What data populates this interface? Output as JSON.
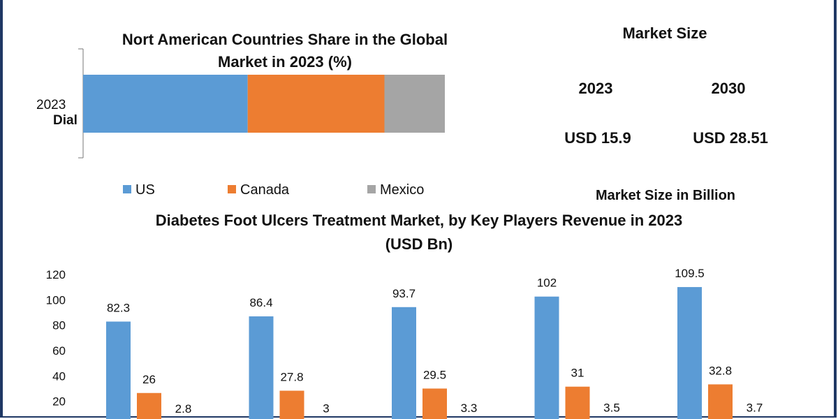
{
  "top_chart": {
    "title_line1": "Nort American Countries Share in the Global",
    "title_line2": "Market in 2023 (%)",
    "y_label_year": "2023",
    "y_label_cut": "Dial",
    "legend": [
      "US",
      "Canada",
      "Mexico"
    ]
  },
  "market_size": {
    "title": "Market Size",
    "year_1": "2023",
    "year_2": "2030",
    "value_1": "USD 15.9",
    "value_2": "USD 28.51",
    "caption": "Market Size in Billion"
  },
  "bottom_chart": {
    "title_line1": "Diabetes Foot Ulcers Treatment Market, by Key Players Revenue in 2023",
    "title_line2": "(USD Bn)"
  },
  "chart_data": [
    {
      "type": "bar",
      "orientation": "horizontal-stacked",
      "categories": [
        "2023"
      ],
      "series": [
        {
          "name": "US",
          "values": [
            45.5
          ],
          "color": "#5b9bd5"
        },
        {
          "name": "Canada",
          "values": [
            37.8
          ],
          "color": "#ed7d31"
        },
        {
          "name": "Mexico",
          "values": [
            16.7
          ],
          "color": "#a5a5a5"
        }
      ],
      "xlim": [
        0,
        100
      ],
      "legend_position": "bottom"
    },
    {
      "type": "bar",
      "groups": 5,
      "series": [
        {
          "values": [
            82.3,
            86.4,
            93.7,
            102,
            109.5
          ],
          "color": "#5b9bd5"
        },
        {
          "values": [
            26,
            27.8,
            29.5,
            31,
            32.8
          ],
          "color": "#ed7d31"
        },
        {
          "values": [
            2.8,
            3,
            3.3,
            3.5,
            3.7
          ],
          "color": "#a5a5a5"
        }
      ],
      "data_labels": [
        [
          "82.3",
          "86.4",
          "93.7",
          "102",
          "109.5"
        ],
        [
          "26",
          "27.8",
          "29.5",
          "31",
          "32.8"
        ],
        [
          "2.8",
          "3",
          "3.3",
          "3.5",
          "3.7"
        ]
      ],
      "y_ticks": [
        "20",
        "40",
        "60",
        "80",
        "100",
        "120"
      ],
      "y_tick_values": [
        20,
        40,
        60,
        80,
        100,
        120
      ],
      "ylim": [
        0,
        120
      ],
      "grid": false
    }
  ]
}
